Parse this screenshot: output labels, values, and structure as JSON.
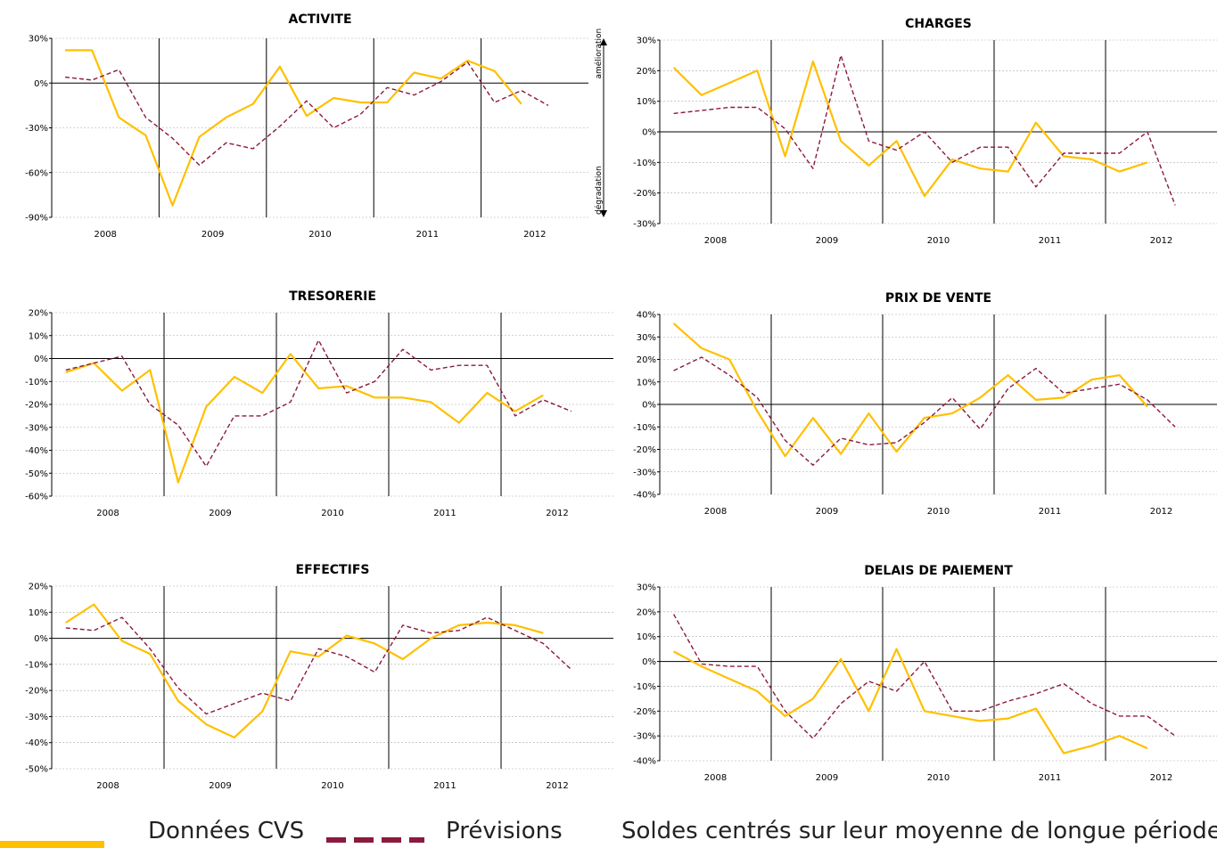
{
  "colors": {
    "actual": "#FFC000",
    "forecast": "#8B1A3C",
    "grid": "#aaaaaa",
    "axis": "#000000"
  },
  "legend": {
    "actual_label": "Données CVS",
    "forecast_label": "Prévisions",
    "note": "Soldes centrés sur leur moyenne de longue période"
  },
  "chart_data": [
    {
      "type": "line",
      "title": "ACTIVITE",
      "years": [
        "2008",
        "2009",
        "2010",
        "2011",
        "2012"
      ],
      "yticks": [
        30,
        0,
        -30,
        -60,
        -90
      ],
      "tick_labels": [
        "30%",
        "0%",
        "-30%",
        "-60%",
        "-90%"
      ],
      "ylim": [
        -90,
        30
      ],
      "n_quarters": 19,
      "arrow_labels": {
        "up": "amélioration",
        "down": "dégradation"
      },
      "series": [
        {
          "key": "actual",
          "values": [
            22,
            22,
            -23,
            -35,
            -82,
            -36,
            -23,
            -14,
            11,
            -22,
            -10,
            -13,
            -13,
            7,
            3,
            15,
            8,
            -14,
            null
          ]
        },
        {
          "key": "forecast",
          "values": [
            4,
            2,
            9,
            -23,
            -37,
            -55,
            -40,
            -44,
            -29,
            -12,
            -30,
            -21,
            -3,
            -8,
            1,
            14,
            -13,
            -5,
            -15
          ]
        }
      ]
    },
    {
      "type": "line",
      "title": "CHARGES",
      "years": [
        "2008",
        "2009",
        "2010",
        "2011",
        "2012"
      ],
      "yticks": [
        30,
        20,
        10,
        0,
        -10,
        -20,
        -30
      ],
      "tick_labels": [
        "30%",
        "20%",
        "10%",
        "0%",
        "-10%",
        "-20%",
        "-30%"
      ],
      "ylim": [
        -30,
        30
      ],
      "n_quarters": 19,
      "series": [
        {
          "key": "actual",
          "values": [
            21,
            12,
            16,
            20,
            -8,
            23,
            -3,
            -11,
            -3,
            -21,
            -9,
            -12,
            -13,
            3,
            -8,
            -9,
            -13,
            -10,
            null
          ]
        },
        {
          "key": "forecast",
          "values": [
            6,
            7,
            8,
            8,
            1,
            -12,
            25,
            -3,
            -6,
            0,
            -10,
            -5,
            -5,
            -18,
            -7,
            -7,
            -7,
            0,
            -24
          ]
        }
      ]
    },
    {
      "type": "line",
      "title": "TRESORERIE",
      "years": [
        "2008",
        "2009",
        "2010",
        "2011",
        "2012"
      ],
      "yticks": [
        20,
        10,
        0,
        -10,
        -20,
        -30,
        -40,
        -50,
        -60
      ],
      "tick_labels": [
        "20%",
        "10%",
        "0%",
        "-10%",
        "-20%",
        "-30%",
        "-40%",
        "-50%",
        "-60%"
      ],
      "ylim": [
        -60,
        20
      ],
      "n_quarters": 19,
      "series": [
        {
          "key": "actual",
          "values": [
            -6,
            -2,
            -14,
            -5,
            -54,
            -21,
            -8,
            -15,
            2,
            -13,
            -12,
            -17,
            -17,
            -19,
            -28,
            -15,
            -23,
            -16,
            null
          ]
        },
        {
          "key": "forecast",
          "values": [
            -5,
            -2,
            1,
            -20,
            -29,
            -47,
            -25,
            -25,
            -19,
            8,
            -15,
            -10,
            4,
            -5,
            -3,
            -3,
            -25,
            -18,
            -23
          ]
        }
      ]
    },
    {
      "type": "line",
      "title": "PRIX DE VENTE",
      "years": [
        "2008",
        "2009",
        "2010",
        "2011",
        "2012"
      ],
      "yticks": [
        40,
        30,
        20,
        10,
        0,
        -10,
        -20,
        -30,
        -40
      ],
      "tick_labels": [
        "40%",
        "30%",
        "20%",
        "10%",
        "0%",
        "-10%",
        "-20%",
        "-30%",
        "-40%"
      ],
      "ylim": [
        -40,
        40
      ],
      "n_quarters": 19,
      "series": [
        {
          "key": "actual",
          "values": [
            36,
            25,
            20,
            -3,
            -23,
            -6,
            -22,
            -4,
            -21,
            -6,
            -4,
            3,
            13,
            2,
            3,
            11,
            13,
            -1,
            null
          ]
        },
        {
          "key": "forecast",
          "values": [
            15,
            21,
            13,
            3,
            -16,
            -27,
            -15,
            -18,
            -17,
            -8,
            3,
            -11,
            7,
            16,
            5,
            7,
            9,
            2,
            -10
          ]
        }
      ]
    },
    {
      "type": "line",
      "title": "EFFECTIFS",
      "years": [
        "2008",
        "2009",
        "2010",
        "2011",
        "2012"
      ],
      "yticks": [
        20,
        10,
        0,
        -10,
        -20,
        -30,
        -40,
        -50
      ],
      "tick_labels": [
        "20%",
        "10%",
        "0%",
        "-10%",
        "-20%",
        "-30%",
        "-40%",
        "-50%"
      ],
      "ylim": [
        -50,
        20
      ],
      "n_quarters": 19,
      "series": [
        {
          "key": "actual",
          "values": [
            6,
            13,
            -1,
            -6,
            -24,
            -33,
            -38,
            -28,
            -5,
            -7,
            1,
            -2,
            -8,
            0,
            5,
            6,
            5,
            2,
            null
          ]
        },
        {
          "key": "forecast",
          "values": [
            4,
            3,
            8,
            -4,
            -19,
            -29,
            -25,
            -21,
            -24,
            -4,
            -7,
            -13,
            5,
            2,
            3,
            8,
            3,
            -2,
            -12
          ]
        }
      ]
    },
    {
      "type": "line",
      "title": "DELAIS DE PAIEMENT",
      "years": [
        "2008",
        "2009",
        "2010",
        "2011",
        "2012"
      ],
      "yticks": [
        30,
        20,
        10,
        0,
        -10,
        -20,
        -30,
        -40
      ],
      "tick_labels": [
        "30%",
        "20%",
        "10%",
        "0%",
        "-10%",
        "-20%",
        "-30%",
        "-40%"
      ],
      "ylim": [
        -40,
        30
      ],
      "n_quarters": 19,
      "series": [
        {
          "key": "actual",
          "values": [
            4,
            -2,
            -7,
            -12,
            -22,
            -15,
            1,
            -20,
            5,
            -20,
            -22,
            -24,
            -23,
            -19,
            -37,
            -34,
            -30,
            -35,
            null
          ]
        },
        {
          "key": "forecast",
          "values": [
            19,
            -1,
            -2,
            -2,
            -20,
            -31,
            -17,
            -8,
            -12,
            0,
            -20,
            -20,
            -16,
            -13,
            -9,
            -17,
            -22,
            -22,
            -30
          ]
        }
      ]
    }
  ]
}
